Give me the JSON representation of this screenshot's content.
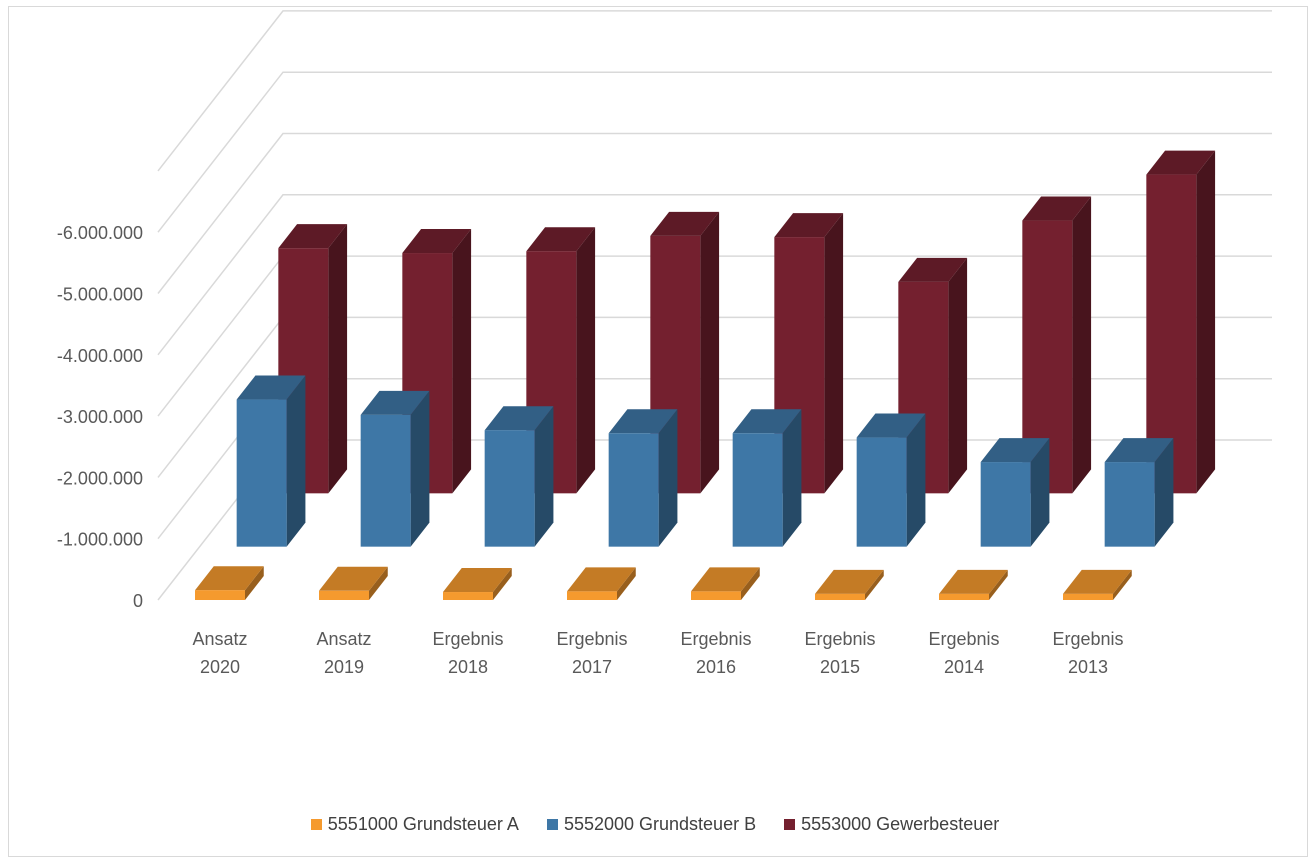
{
  "chart_data": {
    "type": "bar",
    "categories": [
      [
        "Ansatz",
        "2020"
      ],
      [
        "Ansatz",
        "2019"
      ],
      [
        "Ergebnis",
        "2018"
      ],
      [
        "Ergebnis",
        "2017"
      ],
      [
        "Ergebnis",
        "2016"
      ],
      [
        "Ergebnis",
        "2015"
      ],
      [
        "Ergebnis",
        "2014"
      ],
      [
        "Ergebnis",
        "2013"
      ]
    ],
    "series": [
      {
        "name": "5551000 Grundsteuer A",
        "color": "#F59A2E",
        "values": [
          -160000,
          -150000,
          -130000,
          -140000,
          -140000,
          -100000,
          -100000,
          -100000
        ]
      },
      {
        "name": "5552000 Grundsteuer B",
        "color": "#3E77A6",
        "values": [
          -2400000,
          -2150000,
          -1900000,
          -1850000,
          -1850000,
          -1780000,
          -1380000,
          -1380000
        ]
      },
      {
        "name": "5553000 Gewerbesteuer",
        "color": "#74202F",
        "values": [
          -4000000,
          -3920000,
          -3950000,
          -4200000,
          -4180000,
          -3450000,
          -4450000,
          -5200000
        ]
      }
    ],
    "y_tick_labels": [
      "0",
      "-1.000.000",
      "-2.000.000",
      "-3.000.000",
      "-4.000.000",
      "-5.000.000",
      "-6.000.000"
    ],
    "ylim": [
      0,
      -7000000
    ],
    "grid": true,
    "legend_position": "bottom",
    "title": "",
    "xlabel": "",
    "ylabel": ""
  }
}
